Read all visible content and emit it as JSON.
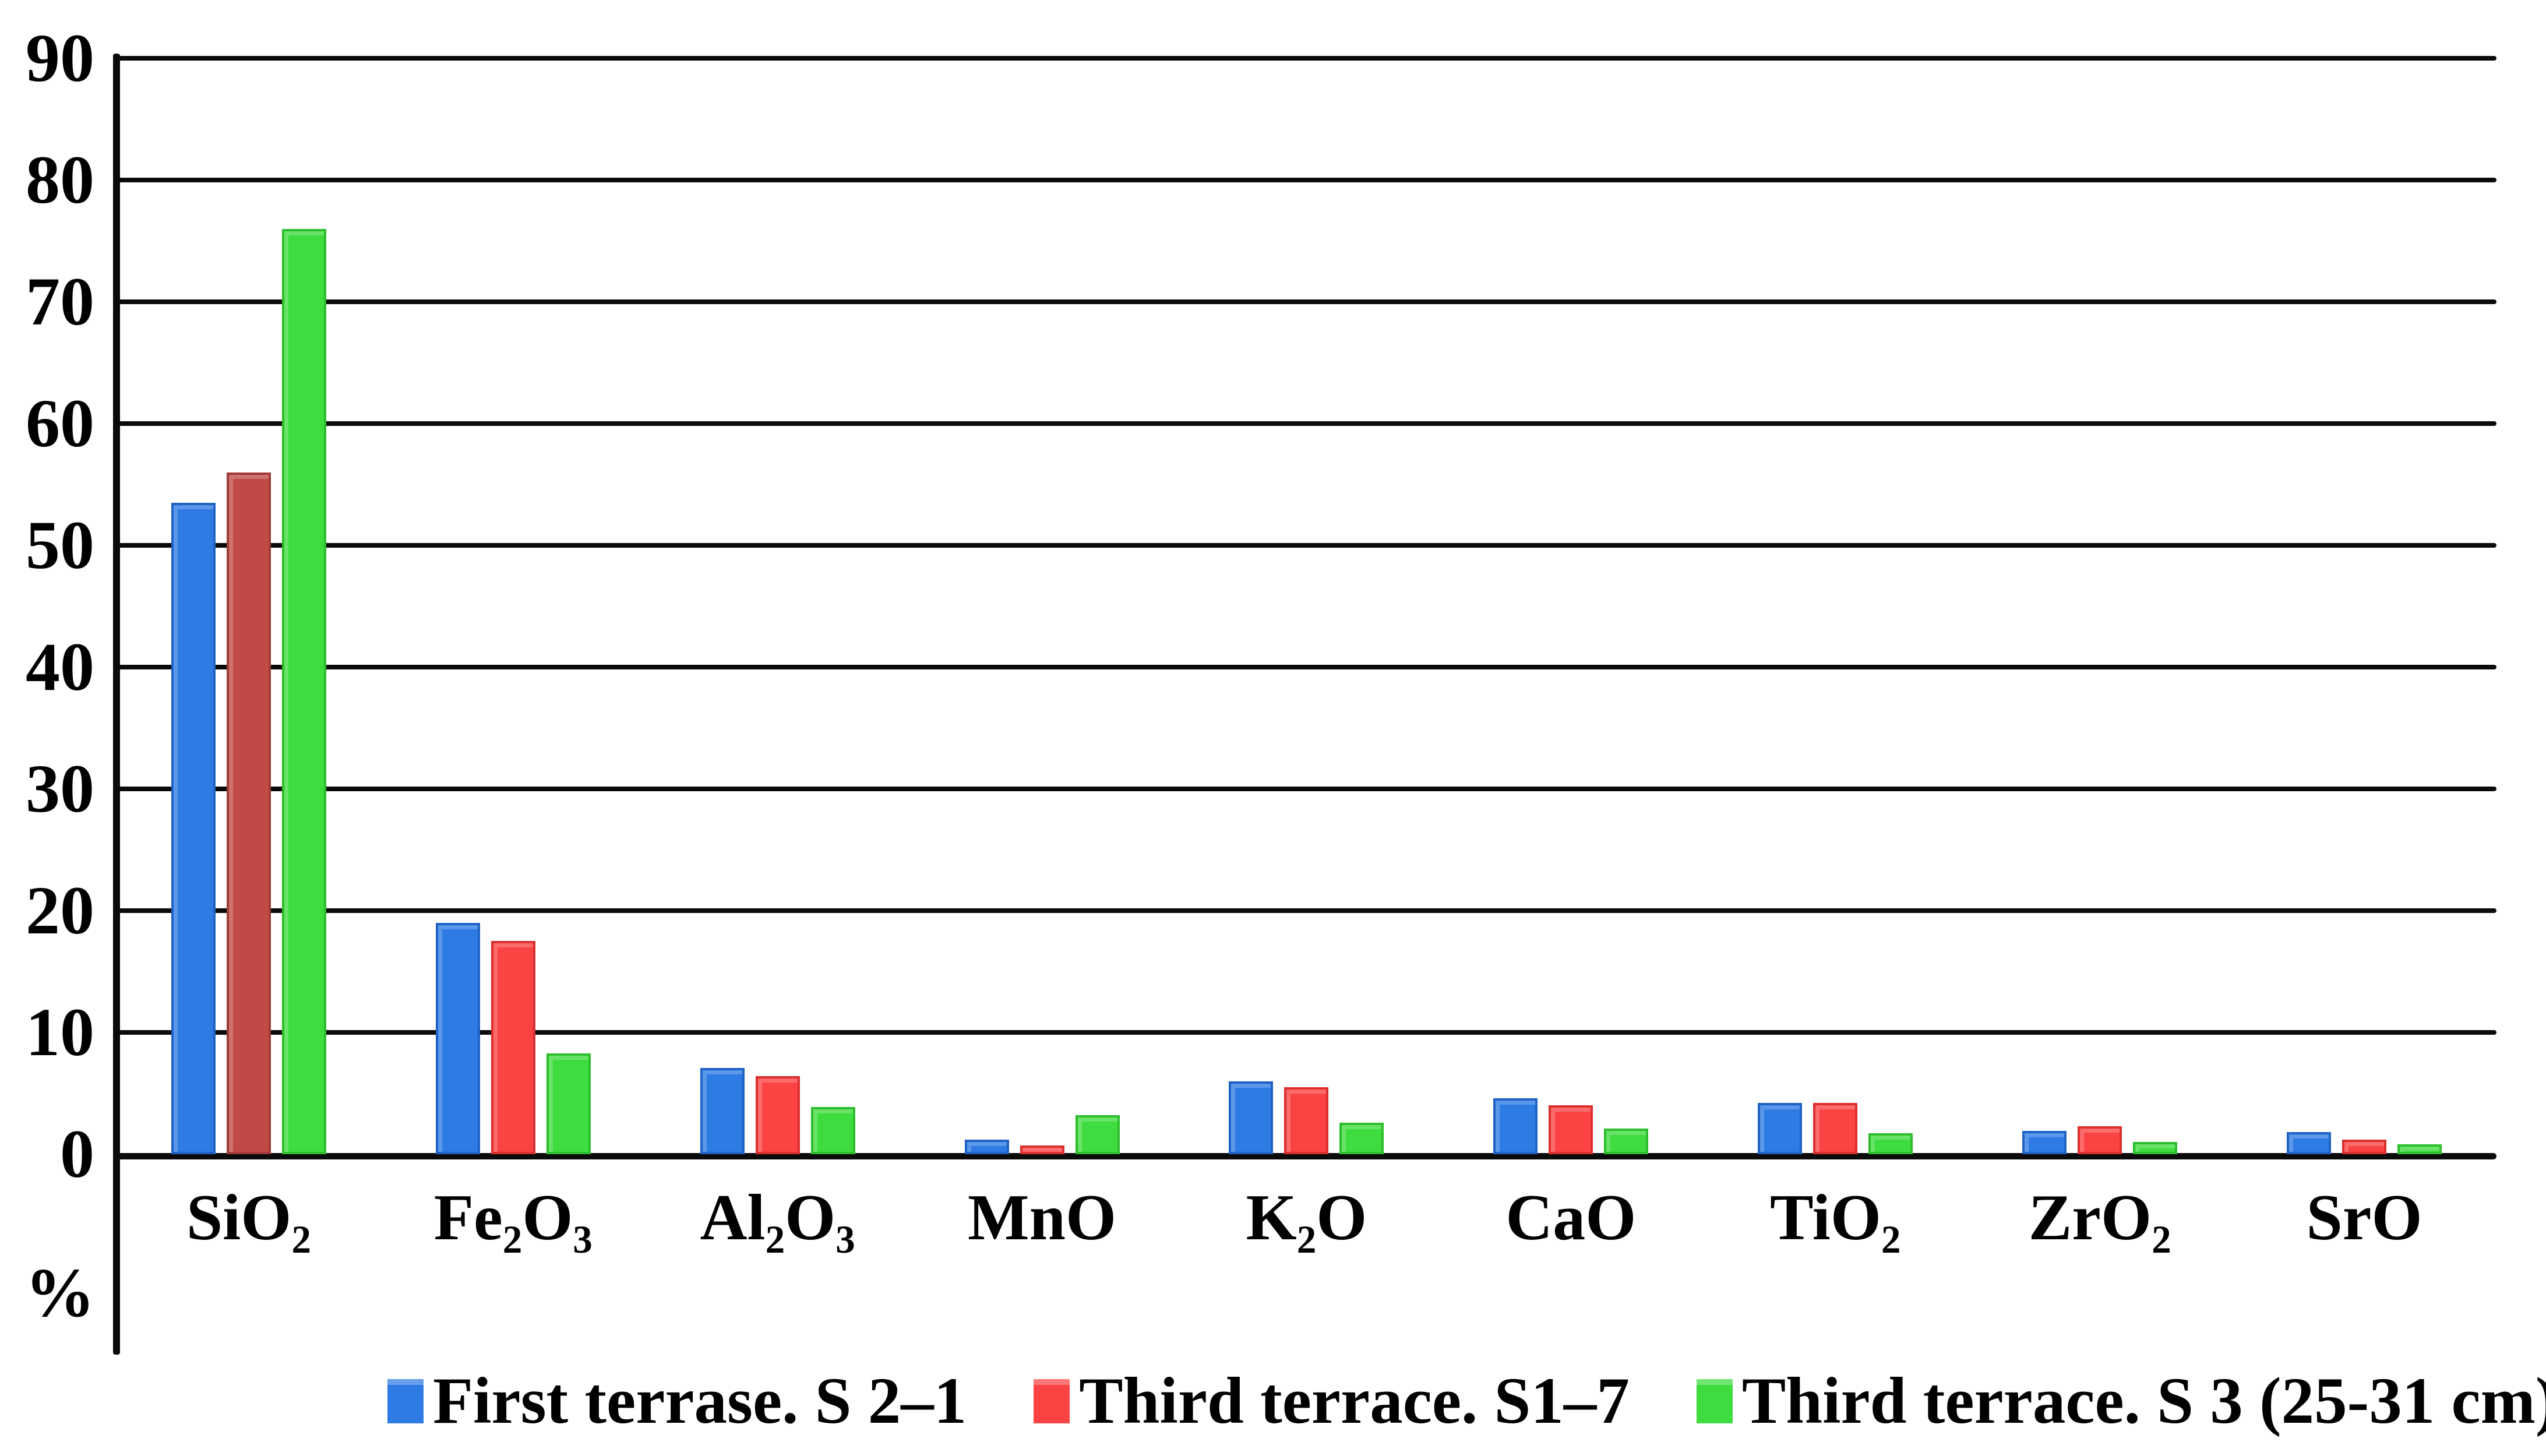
{
  "unit_label": "%",
  "chart_data": {
    "type": "bar",
    "title": "",
    "xlabel": "",
    "ylabel": "%",
    "ylim": [
      0,
      90
    ],
    "y_ticks": [
      0,
      10,
      20,
      30,
      40,
      50,
      60,
      70,
      80,
      90
    ],
    "grid": "horizontal-black-lines",
    "legend_position": "bottom",
    "background_color": "#ffffff",
    "gridline_color": "#0b0b0b",
    "axis_color": "#0b0b0b",
    "categories": [
      "SiO₂",
      "Fe₂O₃",
      "Al₂O₃",
      "MnO",
      "K₂O",
      "CaO",
      "TiO₂",
      "ZrO₂",
      "SrO"
    ],
    "series": [
      {
        "name": "First terrase. S 2–1",
        "color": "#2E7BE4",
        "border_color": "#1F62C6",
        "values": [
          53.5,
          19,
          7.1,
          1.2,
          6,
          4.6,
          4.2,
          1.9,
          1.8
        ]
      },
      {
        "name": "Third terrace. S1–7",
        "color": "#FB4343",
        "border_color": "#DD2E2E",
        "values": [
          56,
          17.5,
          6.4,
          0.7,
          5.5,
          4,
          4.2,
          2.3,
          1.2
        ]
      },
      {
        "name": "Third terrace. S 3 (25-31 cm)",
        "color": "#3EDC3E",
        "border_color": "#2CBE2C",
        "values": [
          76,
          8.3,
          3.9,
          3.2,
          2.6,
          2.1,
          1.7,
          1,
          0.8
        ]
      }
    ],
    "bar_color_overrides": [
      {
        "series_index": 1,
        "category_index": 0,
        "color": "#C04B46",
        "border_color": "#A03A36"
      }
    ]
  }
}
